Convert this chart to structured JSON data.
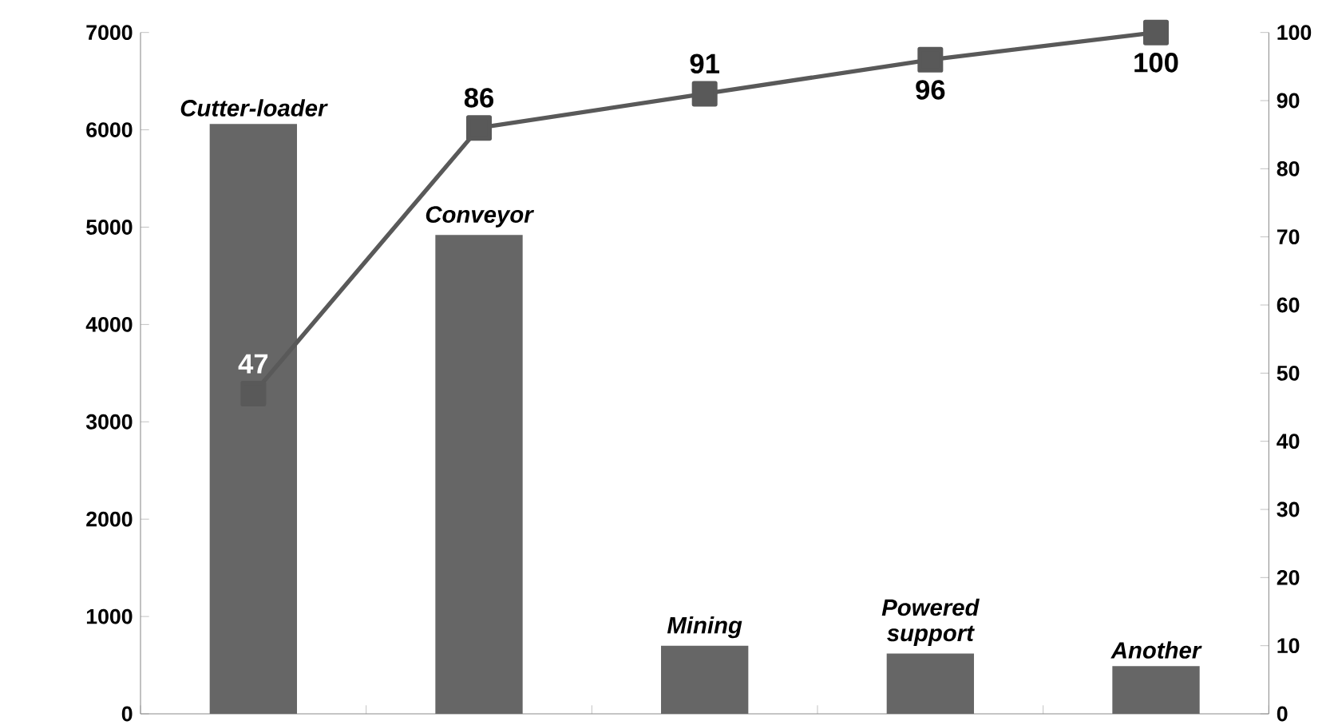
{
  "chart_data": {
    "type": "bar",
    "categories": [
      "Cutter-loader",
      "Conveyor",
      "Mining",
      "Powered support",
      "Another"
    ],
    "series": [
      {
        "color": "#666666",
        "values": [
          6060,
          4920,
          700,
          620,
          490
        ]
      },
      {
        "type": "line",
        "axis": "y2",
        "color": "#595959",
        "values": [
          47,
          86,
          91,
          96,
          100
        ],
        "value_labels": [
          "47",
          "86",
          "91",
          "96",
          "100"
        ]
      }
    ],
    "marker": "square",
    "ylim": [
      0,
      7000
    ],
    "yticks": [
      0,
      1000,
      2000,
      3000,
      4000,
      5000,
      6000,
      7000
    ],
    "y2lim": [
      0,
      100
    ],
    "y2ticks": [
      0,
      10,
      20,
      30,
      40,
      50,
      60,
      70,
      80,
      90,
      100
    ],
    "grid": false
  }
}
